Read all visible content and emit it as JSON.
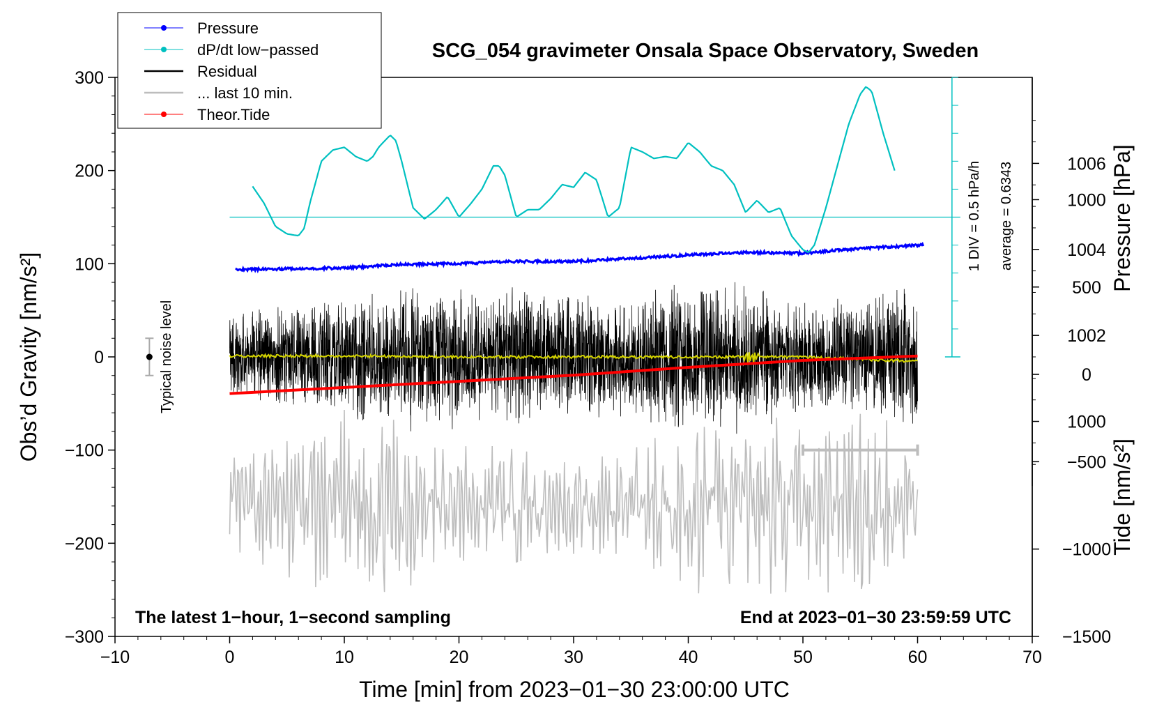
{
  "chart_data": {
    "type": "line",
    "title": "SCG_054 gravimeter Onsala Space Observatory, Sweden",
    "xlabel": "Time [min] from 2023−01−30 23:00:00 UTC",
    "ylabel_left": "Obs’d Gravity [nm/s²]",
    "ylabel_right_pressure": "Pressure [hPa]",
    "ylabel_right_tide": "Tide [nm/s²]",
    "xlim": [
      -10,
      70
    ],
    "ylim": [
      -300,
      300
    ],
    "pressure_ylim": [
      995,
      1008
    ],
    "tide_ylim": [
      -1500,
      1700
    ],
    "x_ticks": [
      -10,
      0,
      10,
      20,
      30,
      40,
      50,
      60,
      70
    ],
    "x_tick_labels": [
      "−10",
      "0",
      "10",
      "20",
      "30",
      "40",
      "50",
      "60",
      "70"
    ],
    "y_ticks": [
      -300,
      -200,
      -100,
      0,
      100,
      200,
      300
    ],
    "y_tick_labels": [
      "−300",
      "−200",
      "−100",
      "0",
      "100",
      "200",
      "300"
    ],
    "pressure_ticks": [
      1000,
      1002,
      1004,
      1006
    ],
    "pressure_tick_labels": [
      "1000",
      "1002",
      "1004",
      "1006"
    ],
    "tide_ticks": [
      -1500,
      -1000,
      -500,
      0,
      500,
      1000
    ],
    "tide_tick_labels": [
      "−1500",
      "−1000",
      "−500",
      "0",
      "500",
      "1000"
    ],
    "legend": {
      "position": "top-left",
      "entries": [
        {
          "label": "Pressure",
          "color": "#0000ff",
          "marker": true
        },
        {
          "label": "dP/dt low−passed",
          "color": "#00c0c0",
          "marker": true
        },
        {
          "label": "Residual",
          "color": "#000000",
          "marker": false
        },
        {
          "label": "... last 10 min.",
          "color": "#bdbdbd",
          "marker": false
        },
        {
          "label": "Theor.Tide",
          "color": "#ff0000",
          "marker": true
        }
      ]
    },
    "series": [
      {
        "name": "Pressure",
        "units": "hPa",
        "color": "#0000ff",
        "x": [
          0.5,
          5,
          10,
          15,
          20,
          25,
          30,
          35,
          40,
          45,
          50,
          55,
          60.5
        ],
        "values": [
          1003.53,
          1003.55,
          1003.57,
          1003.65,
          1003.67,
          1003.72,
          1003.72,
          1003.79,
          1003.87,
          1003.93,
          1003.91,
          1004.02,
          1004.1
        ]
      },
      {
        "name": "dP/dt low−passed",
        "units": "grav axis units (1 DIV = 0.5 hPa/h, zero line at 150)",
        "color": "#00c0c0",
        "baseline": 150,
        "x": [
          2,
          3,
          4,
          5,
          6,
          6.5,
          7,
          8,
          9,
          10,
          11,
          12,
          12.5,
          13,
          14,
          14.5,
          15,
          16,
          17,
          18,
          19,
          20,
          21,
          22,
          23,
          23.5,
          24,
          25,
          26,
          27,
          28,
          29,
          30,
          31,
          32,
          33,
          34,
          35,
          36,
          37,
          38,
          39,
          40,
          41,
          42,
          43,
          44,
          45,
          46,
          47,
          48,
          49,
          50,
          50.5,
          51,
          52,
          53,
          54,
          55,
          55.5,
          56,
          57,
          58
        ],
        "values": [
          183,
          165,
          140,
          132,
          130,
          138,
          165,
          210,
          222,
          225,
          215,
          210,
          215,
          225,
          238,
          232,
          210,
          160,
          148,
          158,
          172,
          150,
          164,
          180,
          205,
          205,
          195,
          150,
          158,
          158,
          170,
          185,
          182,
          198,
          190,
          150,
          160,
          225,
          220,
          213,
          215,
          213,
          230,
          220,
          205,
          200,
          185,
          155,
          168,
          155,
          160,
          130,
          115,
          112,
          120,
          160,
          205,
          250,
          282,
          290,
          285,
          240,
          200
        ]
      },
      {
        "name": "Residual",
        "units": "nm/s²",
        "color": "#000000",
        "x_range": [
          0,
          60
        ],
        "envelope_x": [
          0,
          5,
          10,
          15,
          20,
          25,
          30,
          35,
          40,
          45,
          50,
          55,
          60
        ],
        "envelope_amplitude": [
          48,
          62,
          72,
          84,
          80,
          78,
          72,
          70,
          86,
          88,
          62,
          70,
          80
        ]
      },
      {
        "name": "Residual smoothed",
        "units": "nm/s²",
        "color": "#d4d400",
        "x": [
          0,
          10,
          20,
          30,
          40,
          45,
          50,
          60
        ],
        "values": [
          1,
          1,
          0,
          0,
          0,
          0,
          0,
          -5
        ]
      },
      {
        "name": "... last 10 min.",
        "units": "nm/s² (residual scale, offset −160)",
        "color": "#bdbdbd",
        "offset": -160,
        "x_range": [
          0,
          60
        ],
        "envelope_x": [
          0,
          5,
          10,
          15,
          20,
          25,
          30,
          35,
          40,
          45,
          50,
          55,
          60
        ],
        "envelope_amplitude": [
          55,
          85,
          105,
          100,
          65,
          75,
          55,
          70,
          100,
          110,
          95,
          120,
          65
        ]
      },
      {
        "name": "Theor.Tide",
        "units": "nm/s²",
        "color": "#ff0000",
        "x": [
          0,
          10,
          20,
          30,
          40,
          50,
          60
        ],
        "values": [
          -110,
          -75,
          -40,
          -5,
          40,
          80,
          105
        ]
      }
    ],
    "annotations": {
      "noise_label": "Typical noise level",
      "noise_point": {
        "x": -7,
        "y": 0,
        "error": 20
      },
      "scale_text_1": "1 DIV = 0.5 hPa/h",
      "scale_text_2": "average = 0.6343",
      "last10_range": [
        50,
        60
      ],
      "last10_level": -100,
      "footer_left": "The latest 1−hour, 1−second sampling",
      "footer_right": "End at 2023−01−30 23:59:59 UTC"
    }
  }
}
